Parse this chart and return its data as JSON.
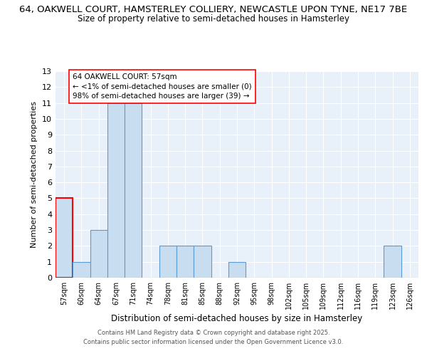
{
  "title_line1": "64, OAKWELL COURT, HAMSTERLEY COLLIERY, NEWCASTLE UPON TYNE, NE17 7BE",
  "title_line2": "Size of property relative to semi-detached houses in Hamsterley",
  "xlabel": "Distribution of semi-detached houses by size in Hamsterley",
  "ylabel": "Number of semi-detached properties",
  "categories": [
    "57sqm",
    "60sqm",
    "64sqm",
    "67sqm",
    "71sqm",
    "74sqm",
    "78sqm",
    "81sqm",
    "85sqm",
    "88sqm",
    "92sqm",
    "95sqm",
    "98sqm",
    "102sqm",
    "105sqm",
    "109sqm",
    "112sqm",
    "116sqm",
    "119sqm",
    "123sqm",
    "126sqm"
  ],
  "values": [
    5,
    1,
    3,
    11,
    11,
    0,
    2,
    2,
    2,
    0,
    1,
    0,
    0,
    0,
    0,
    0,
    0,
    0,
    0,
    2,
    0
  ],
  "bar_color": "#c9ddf0",
  "bar_edge_color": "#5b9bd5",
  "highlight_bar_index": 0,
  "highlight_edge_color": "red",
  "annotation_text": "64 OAKWELL COURT: 57sqm\n← <1% of semi-detached houses are smaller (0)\n98% of semi-detached houses are larger (39) →",
  "ylim": [
    0,
    13
  ],
  "yticks": [
    0,
    1,
    2,
    3,
    4,
    5,
    6,
    7,
    8,
    9,
    10,
    11,
    12,
    13
  ],
  "footer_line1": "Contains HM Land Registry data © Crown copyright and database right 2025.",
  "footer_line2": "Contains public sector information licensed under the Open Government Licence v3.0.",
  "bg_color": "#e8f0fa",
  "grid_color": "#ffffff",
  "title_fontsize": 9.5,
  "subtitle_fontsize": 8.5
}
